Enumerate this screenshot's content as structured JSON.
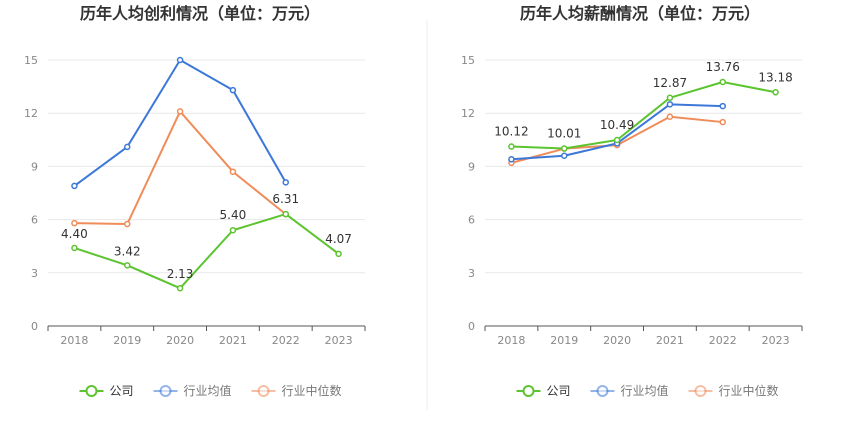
{
  "chart_data": [
    {
      "type": "line",
      "title": "历年人均创利情况（单位：万元）",
      "x": [
        "2018",
        "2019",
        "2020",
        "2021",
        "2022",
        "2023"
      ],
      "ylim": [
        0,
        15
      ],
      "yticks": [
        0,
        3,
        6,
        9,
        12,
        15
      ],
      "grid": true,
      "legend_position": "bottom",
      "series": [
        {
          "name": "公司",
          "color": "#5bc42f",
          "values": [
            4.4,
            3.42,
            2.13,
            5.4,
            6.31,
            4.07
          ],
          "labels": [
            "4.40",
            "3.42",
            "2.13",
            "5.40",
            "6.31",
            "4.07"
          ]
        },
        {
          "name": "行业均值",
          "color": "#3c78d8",
          "values": [
            7.9,
            10.1,
            15.0,
            13.3,
            8.1,
            null
          ]
        },
        {
          "name": "行业中位数",
          "color": "#f08c5a",
          "values": [
            5.8,
            5.75,
            12.1,
            8.7,
            6.3,
            null
          ]
        }
      ]
    },
    {
      "type": "line",
      "title": "历年人均薪酬情况（单位：万元）",
      "x": [
        "2018",
        "2019",
        "2020",
        "2021",
        "2022",
        "2023"
      ],
      "ylim": [
        0,
        15
      ],
      "yticks": [
        0,
        3,
        6,
        9,
        12,
        15
      ],
      "grid": true,
      "legend_position": "bottom",
      "series": [
        {
          "name": "公司",
          "color": "#5bc42f",
          "values": [
            10.12,
            10.01,
            10.49,
            12.87,
            13.76,
            13.18
          ],
          "labels": [
            "10.12",
            "10.01",
            "10.49",
            "12.87",
            "13.76",
            "13.18"
          ]
        },
        {
          "name": "行业均值",
          "color": "#3c78d8",
          "values": [
            9.4,
            9.6,
            10.3,
            12.5,
            12.4,
            null
          ]
        },
        {
          "name": "行业中位数",
          "color": "#f08c5a",
          "values": [
            9.2,
            10.0,
            10.2,
            11.8,
            11.5,
            null
          ]
        }
      ]
    }
  ]
}
